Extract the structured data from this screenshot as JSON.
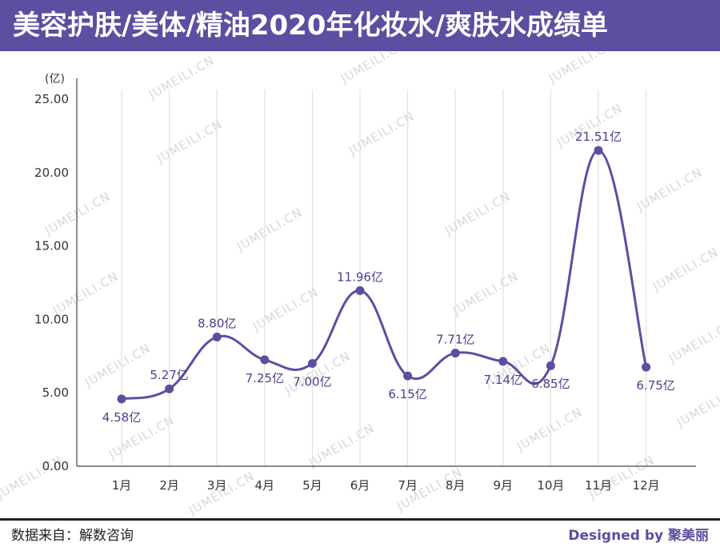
{
  "header": {
    "title": "美容护肤/美体/精油2020年化妆水/爽肤水成绩单"
  },
  "colors": {
    "accent": "#5a4fa0",
    "line": "#5a4fa0",
    "grid": "#dcdcdc"
  },
  "watermark_text": "JUMEILI.CN",
  "footer": {
    "source": "数据来自：解数咨询",
    "designed_by": "Designed by 聚美丽"
  },
  "chart_data": {
    "type": "line",
    "unit": "(亿)",
    "categories": [
      "1月",
      "2月",
      "3月",
      "4月",
      "5月",
      "6月",
      "7月",
      "8月",
      "9月",
      "10月",
      "11月",
      "12月"
    ],
    "values": [
      4.58,
      5.27,
      8.8,
      7.25,
      7.0,
      11.96,
      6.15,
      7.71,
      7.14,
      6.85,
      21.51,
      6.75
    ],
    "data_labels": [
      "4.58亿",
      "5.27亿",
      "8.80亿",
      "7.25亿",
      "7.00亿",
      "11.96亿",
      "6.15亿",
      "7.71亿",
      "7.14亿",
      "6.85亿",
      "21.51亿",
      "6.75亿"
    ],
    "yticks": [
      "0.00",
      "5.00",
      "10.00",
      "15.00",
      "20.00",
      "25.00"
    ],
    "ylim": [
      0,
      25
    ],
    "grid": "vertical",
    "smooth": true
  }
}
